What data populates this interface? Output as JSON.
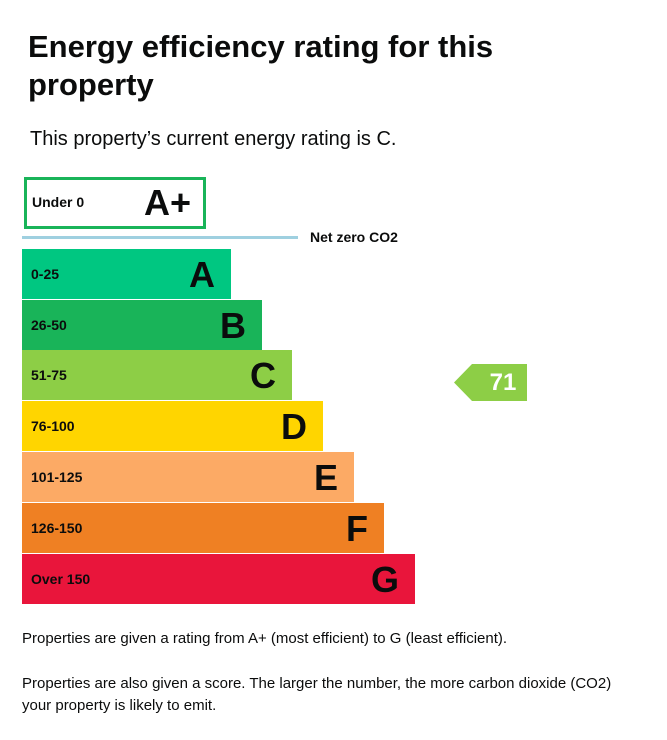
{
  "header": {
    "title": "Energy efficiency rating for this property"
  },
  "intro": "This property’s current energy rating is C.",
  "aplus": {
    "range": "Under 0",
    "letter": "A+",
    "color": "#19b459"
  },
  "net_zero_label": "Net zero CO2",
  "bands": [
    {
      "range": "0-25",
      "letter": "A",
      "color": "#00c781"
    },
    {
      "range": "26-50",
      "letter": "B",
      "color": "#19b459"
    },
    {
      "range": "51-75",
      "letter": "C",
      "color": "#8dce46"
    },
    {
      "range": "76-100",
      "letter": "D",
      "color": "#ffd500"
    },
    {
      "range": "101-125",
      "letter": "E",
      "color": "#fcaa65"
    },
    {
      "range": "126-150",
      "letter": "F",
      "color": "#ef8023"
    },
    {
      "range": "Over 150",
      "letter": "G",
      "color": "#e9153b"
    }
  ],
  "current": {
    "score": 71,
    "band": 2
  },
  "paragraphs": [
    "Properties are given a rating from A+ (most efficient) to G (least efficient).",
    "Properties are also given a score. The larger the number, the more carbon dioxide (CO2) your property is likely to emit."
  ]
}
